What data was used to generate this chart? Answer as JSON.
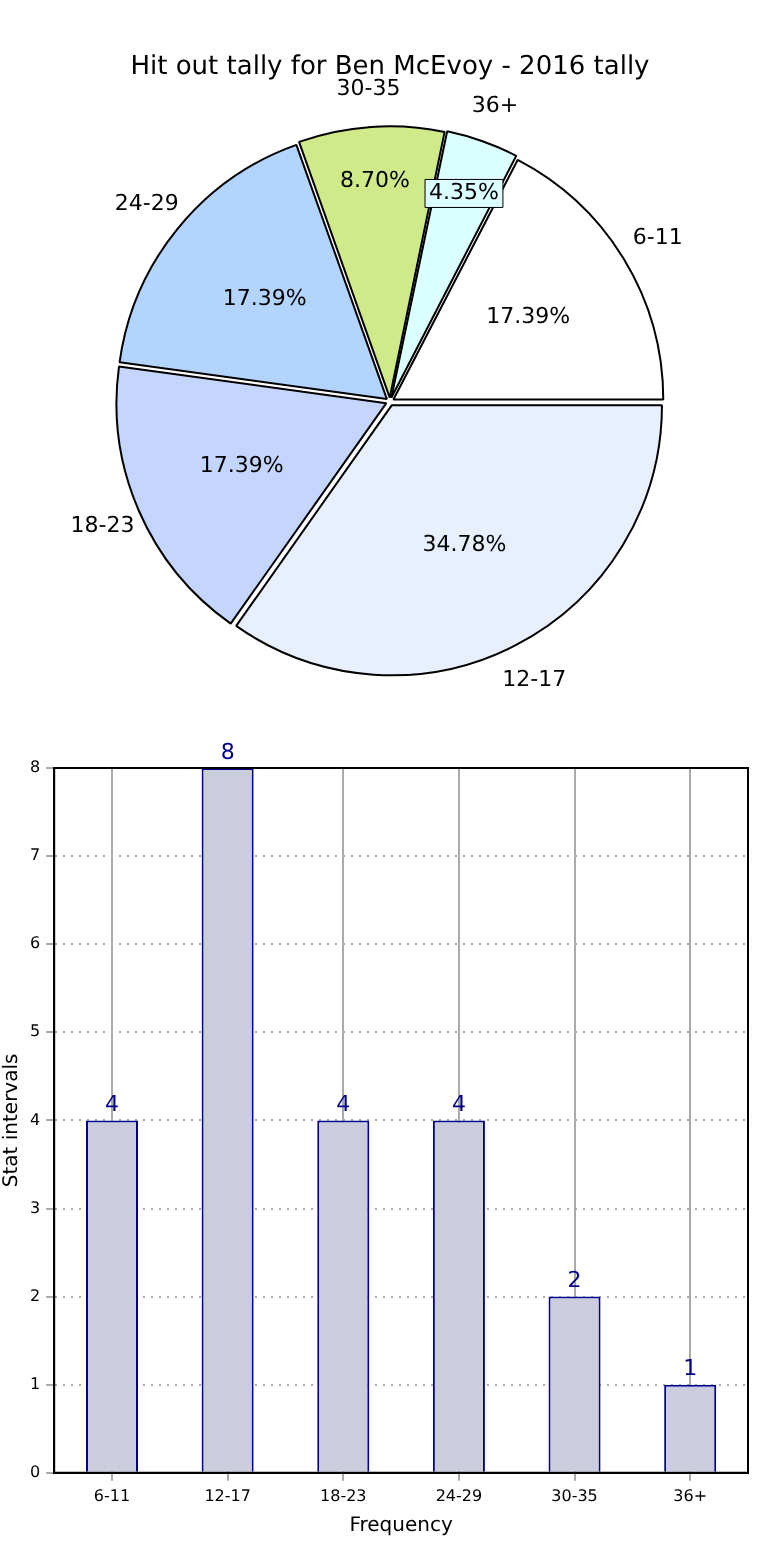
{
  "chart_data": [
    {
      "type": "pie",
      "title": "Hit out tally for Ben McEvoy - 2016 tally",
      "categories": [
        "6-11",
        "12-17",
        "18-23",
        "24-29",
        "30-35",
        "36+"
      ],
      "values": [
        17.39,
        34.78,
        17.39,
        17.39,
        8.7,
        4.35
      ],
      "colors": [
        "#ffffff",
        "#e8f0ff",
        "#c4d6ff",
        "#b3d4ff",
        "#d0ea8a",
        "#dcffff"
      ],
      "value_labels": [
        "17.39%",
        "34.78%",
        "17.39%",
        "17.39%",
        "8.70%",
        "4.35%"
      ]
    },
    {
      "type": "bar",
      "categories": [
        "6-11",
        "12-17",
        "18-23",
        "24-29",
        "30-35",
        "36+"
      ],
      "values": [
        4,
        8,
        4,
        4,
        2,
        1
      ],
      "color": "#ccccdf",
      "xlabel": "Frequency",
      "ylabel": "Stat intervals",
      "ylim": [
        0,
        8
      ],
      "yticks": [
        0,
        1,
        2,
        3,
        4,
        5,
        6,
        7,
        8
      ],
      "grid": true,
      "data_labels": true
    }
  ]
}
